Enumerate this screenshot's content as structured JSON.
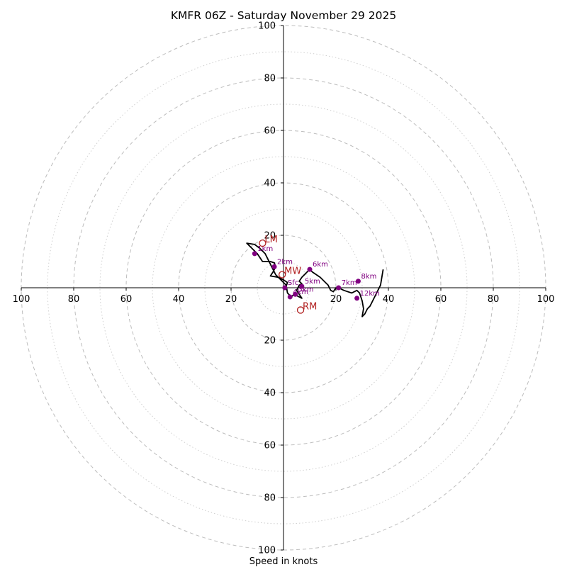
{
  "chart_data": {
    "type": "hodograph",
    "title": "KMFR 06Z - Saturday November 29 2025",
    "xlabel": "Speed in knots",
    "units": "knots",
    "rings_major": [
      20,
      40,
      60,
      80,
      100
    ],
    "rings_minor": [
      10,
      30,
      50,
      70,
      90
    ],
    "max_speed": 100,
    "tick_labels": {
      "left": [
        "100",
        "80",
        "60",
        "40",
        "20"
      ],
      "right": [
        "20",
        "40",
        "60",
        "80",
        "100"
      ],
      "top": [
        "100",
        "80",
        "60",
        "40",
        "20"
      ],
      "bottom": [
        "20",
        "40",
        "60",
        "80",
        "100"
      ]
    },
    "trace": [
      [
        0,
        0
      ],
      [
        1,
        0.5
      ],
      [
        1.5,
        2
      ],
      [
        0,
        3
      ],
      [
        -2,
        4
      ],
      [
        -5,
        4.5
      ],
      [
        -4,
        6
      ],
      [
        -3,
        8
      ],
      [
        -3.5,
        9.5
      ],
      [
        -5,
        10
      ],
      [
        -8,
        10
      ],
      [
        -10,
        13
      ],
      [
        -12,
        15
      ],
      [
        -14,
        17
      ],
      [
        -11,
        16.5
      ],
      [
        -9,
        15
      ],
      [
        -7,
        13
      ],
      [
        -6,
        11
      ],
      [
        -5,
        9
      ],
      [
        -4,
        7
      ],
      [
        -3,
        5
      ],
      [
        -1,
        3
      ],
      [
        1,
        1
      ],
      [
        1.5,
        -2
      ],
      [
        3,
        -3.5
      ],
      [
        4,
        -2.5
      ],
      [
        5,
        -3
      ],
      [
        7,
        -4
      ],
      [
        5,
        -1
      ],
      [
        6,
        1
      ],
      [
        7,
        1.5
      ],
      [
        6,
        2.5
      ],
      [
        7,
        4
      ],
      [
        9,
        6
      ],
      [
        10,
        7
      ],
      [
        11,
        6
      ],
      [
        14,
        4
      ],
      [
        16,
        2
      ],
      [
        17,
        1
      ],
      [
        18,
        -1
      ],
      [
        19,
        -1.5
      ],
      [
        20,
        0
      ],
      [
        21,
        0
      ],
      [
        23,
        -1
      ],
      [
        26,
        -2
      ],
      [
        28,
        -1
      ],
      [
        29,
        -2
      ],
      [
        30,
        -5
      ],
      [
        30.5,
        -8
      ],
      [
        30,
        -11
      ],
      [
        31,
        -10
      ],
      [
        32,
        -8
      ],
      [
        33,
        -7
      ],
      [
        34,
        -5
      ],
      [
        35,
        -3
      ],
      [
        36,
        -1
      ],
      [
        37,
        1
      ],
      [
        38,
        7
      ]
    ],
    "height_markers": [
      {
        "label": "Sfc",
        "u": 0.5,
        "v": 0
      },
      {
        "label": "1km",
        "u": -11,
        "v": 13
      },
      {
        "label": "2km",
        "u": -3.5,
        "v": 8
      },
      {
        "label": "3km",
        "u": 4.5,
        "v": -2.5
      },
      {
        "label": "4km",
        "u": 2.5,
        "v": -3.5
      },
      {
        "label": "5km",
        "u": 7,
        "v": 0.5
      },
      {
        "label": "6km",
        "u": 10,
        "v": 7
      },
      {
        "label": "7km",
        "u": 21,
        "v": 0
      },
      {
        "label": "8km",
        "u": 28.5,
        "v": 2.5
      },
      {
        "label": "12km",
        "u": 28,
        "v": -4
      }
    ],
    "storm_motions": [
      {
        "label": "LM",
        "u": -8,
        "v": 17
      },
      {
        "label": "MW",
        "u": -0.5,
        "v": 5
      },
      {
        "label": "RM",
        "u": 6.5,
        "v": -8.5
      }
    ],
    "colors": {
      "trace": "#000000",
      "markers": "#800080",
      "storm_motion": "#b22222",
      "rings": "#bdbdbd"
    }
  }
}
